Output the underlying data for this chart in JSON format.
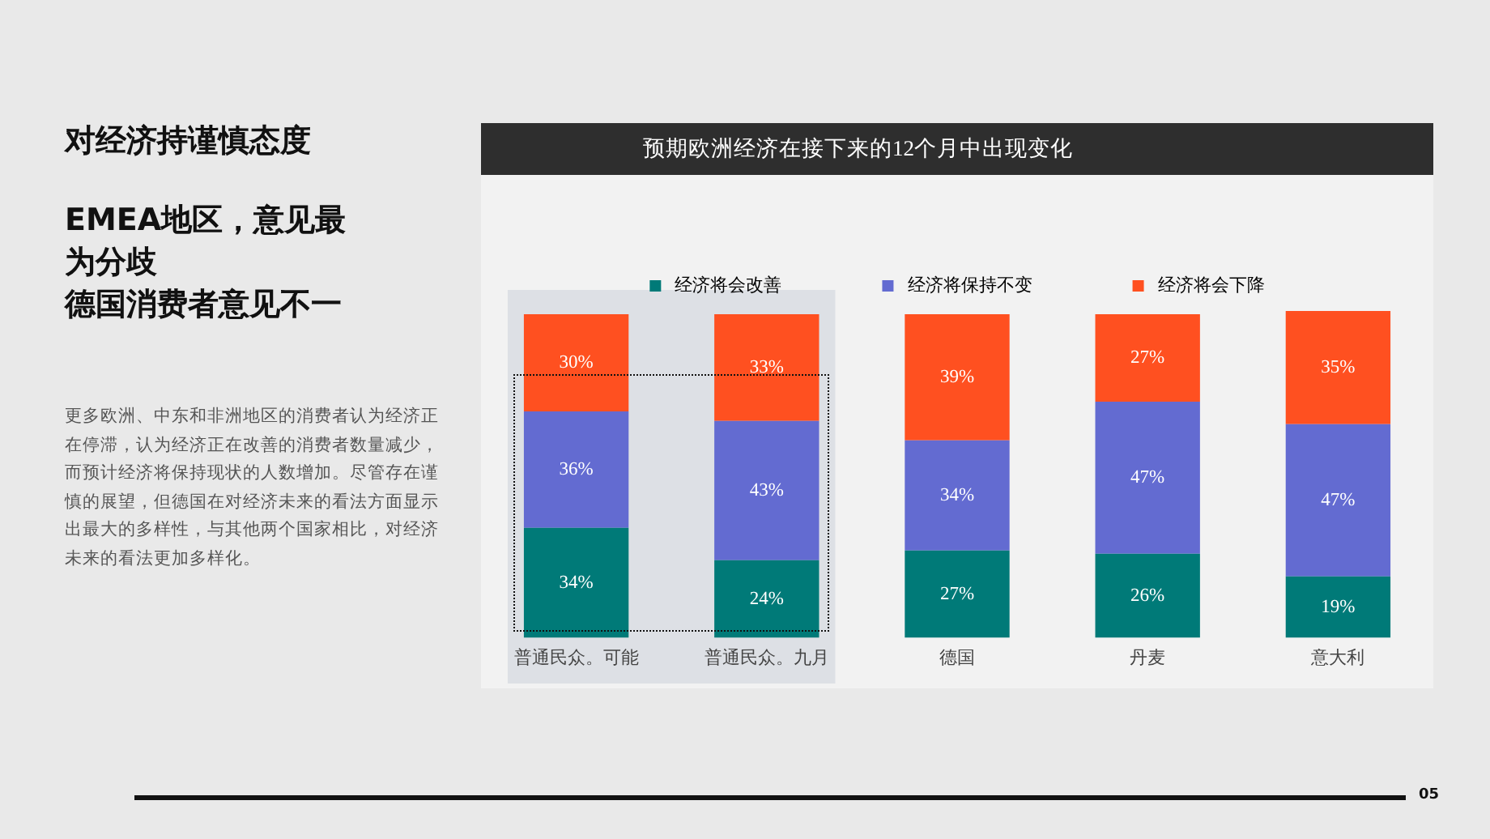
{
  "chart_data": {
    "type": "bar",
    "stacked": true,
    "legend": "top",
    "grid": false,
    "title": "预期欧洲经济在接下来的12个月中出现变化",
    "categories": [
      "普通民众。可能",
      "普通民众。九月",
      "德国",
      "丹麦",
      "意大利"
    ],
    "series": [
      {
        "name": "经济将会改善",
        "color": "#007a78",
        "values": [
          34,
          24,
          27,
          26,
          19
        ],
        "value_labels": [
          "34%",
          "24%",
          "27%",
          "26%",
          "19%"
        ]
      },
      {
        "name": "经济将保持不变",
        "color": "#636bd1",
        "values": [
          36,
          43,
          34,
          47,
          47
        ],
        "value_labels": [
          "36%",
          "43%",
          "34%",
          "47%",
          "47%"
        ]
      },
      {
        "name": "经济将会下降",
        "color": "#ff5020",
        "values": [
          30,
          33,
          39,
          27,
          35
        ],
        "value_labels": [
          "30%",
          "33%",
          "39%",
          "27%",
          "35%"
        ]
      }
    ],
    "bands": [
      {
        "axis": "x",
        "from": "普通民众。可能",
        "to": "普通民众。九月",
        "color": "#dde0e5"
      }
    ],
    "annotations": [
      "对经济持谨慎态度",
      "EMEA地区，意见最为分歧",
      "德国消费者意见不一",
      "更多欧洲、中东和非洲地区的消费者认为经济正在停滞，认为经济正在改善的消费者数量减少，而预计经济将保持现状的人数增加。尽管存在谨慎的展望，但德国在对经济未来的看法方面显示出最大的多样性，与其他两个国家相比，对经济未来的看法更加多样化。",
      "05"
    ]
  }
}
